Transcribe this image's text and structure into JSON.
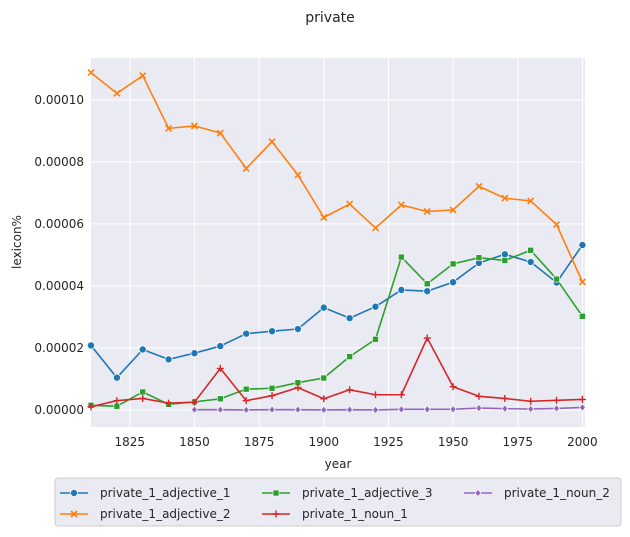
{
  "chart_data": {
    "type": "line",
    "title": "private",
    "xlabel": "year",
    "ylabel": "lexicon%",
    "xlim": [
      1810,
      2001
    ],
    "ylim": [
      -5.5e-06,
      0.0001135
    ],
    "x_ticks": [
      1825,
      1850,
      1875,
      1900,
      1925,
      1950,
      1975,
      2000
    ],
    "y_ticks": [
      0.0,
      2e-05,
      4e-05,
      6e-05,
      8e-05,
      0.0001
    ],
    "y_tick_labels": [
      "0.00000",
      "0.00002",
      "0.00004",
      "0.00006",
      "0.00008",
      "0.00010"
    ],
    "x_tick_labels": [
      "1825",
      "1850",
      "1875",
      "1900",
      "1925",
      "1950",
      "1975",
      "2000"
    ],
    "grid": true,
    "legend_position": "bottom",
    "background": "#eaeaf2",
    "series": [
      {
        "name": "private_1_adjective_1",
        "color": "#1f77b4",
        "marker": "circle",
        "x": [
          1810,
          1820,
          1830,
          1840,
          1850,
          1860,
          1870,
          1880,
          1890,
          1900,
          1910,
          1920,
          1930,
          1940,
          1950,
          1960,
          1970,
          1980,
          1990,
          2000
        ],
        "y": [
          2.08e-05,
          1.04e-05,
          1.95e-05,
          1.63e-05,
          1.83e-05,
          2.06e-05,
          2.46e-05,
          2.54e-05,
          2.61e-05,
          3.3e-05,
          2.96e-05,
          3.33e-05,
          3.87e-05,
          3.83e-05,
          4.12e-05,
          4.74e-05,
          5.02e-05,
          4.77e-05,
          4.11e-05,
          5.32e-05
        ]
      },
      {
        "name": "private_1_adjective_2",
        "color": "#ff7f0e",
        "marker": "x",
        "x": [
          1810,
          1820,
          1830,
          1840,
          1850,
          1860,
          1870,
          1880,
          1890,
          1900,
          1910,
          1920,
          1930,
          1940,
          1950,
          1960,
          1970,
          1980,
          1990,
          2000
        ],
        "y": [
          0.0001088,
          0.0001021,
          0.0001078,
          9.08e-05,
          9.16e-05,
          8.93e-05,
          7.79e-05,
          8.65e-05,
          7.58e-05,
          6.21e-05,
          6.64e-05,
          5.87e-05,
          6.61e-05,
          6.4e-05,
          6.45e-05,
          7.21e-05,
          6.83e-05,
          6.74e-05,
          5.98e-05,
          4.13e-05
        ]
      },
      {
        "name": "private_1_adjective_3",
        "color": "#2ca02c",
        "marker": "square",
        "x": [
          1810,
          1820,
          1830,
          1840,
          1850,
          1860,
          1870,
          1880,
          1890,
          1900,
          1910,
          1920,
          1930,
          1940,
          1950,
          1960,
          1970,
          1980,
          1990,
          2000
        ],
        "y": [
          1.5e-06,
          1.2e-06,
          5.8e-06,
          1.8e-06,
          2.6e-06,
          3.6e-06,
          6.7e-06,
          7e-06,
          8.8e-06,
          1.03e-05,
          1.72e-05,
          2.28e-05,
          4.93e-05,
          4.07e-05,
          4.71e-05,
          4.91e-05,
          4.82e-05,
          5.15e-05,
          4.22e-05,
          3.02e-05
        ]
      },
      {
        "name": "private_1_noun_1",
        "color": "#d62728",
        "marker": "plus",
        "x": [
          1810,
          1820,
          1830,
          1840,
          1850,
          1860,
          1870,
          1880,
          1890,
          1900,
          1910,
          1920,
          1930,
          1940,
          1950,
          1960,
          1970,
          1980,
          1990,
          2000
        ],
        "y": [
          1e-06,
          3e-06,
          3.7e-06,
          2.2e-06,
          2.5e-06,
          1.34e-05,
          3e-06,
          4.6e-06,
          7.2e-06,
          3.6e-06,
          6.5e-06,
          4.9e-06,
          4.9e-06,
          2.32e-05,
          7.5e-06,
          4.4e-06,
          3.7e-06,
          2.8e-06,
          3.1e-06,
          3.4e-06
        ]
      },
      {
        "name": "private_1_noun_2",
        "color": "#9467bd",
        "marker": "diamond",
        "x": [
          1850,
          1860,
          1870,
          1880,
          1890,
          1900,
          1910,
          1920,
          1930,
          1940,
          1950,
          1960,
          1970,
          1980,
          1990,
          2000
        ],
        "y": [
          1e-07,
          1e-07,
          0.0,
          1e-07,
          1e-07,
          0.0,
          1e-07,
          0.0,
          2e-07,
          2e-07,
          2e-07,
          6e-07,
          4e-07,
          3e-07,
          5e-07,
          8e-07
        ]
      }
    ]
  }
}
